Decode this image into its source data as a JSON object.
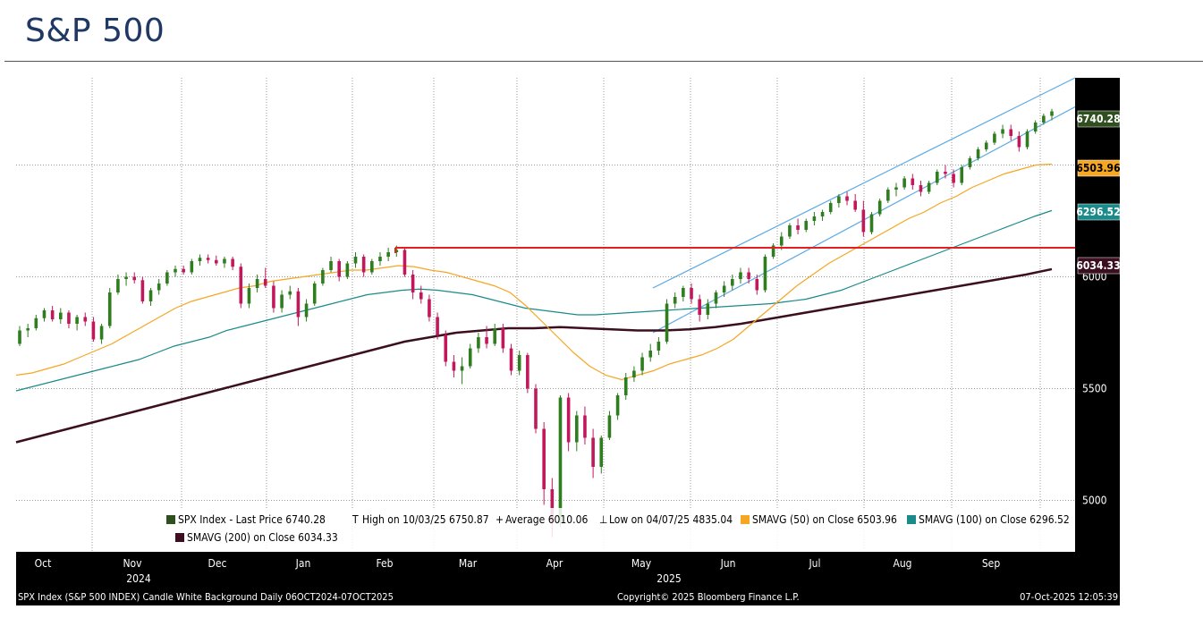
{
  "title": "S&P 500",
  "chart_data": {
    "type": "candlestick",
    "y_range": [
      4770,
      6890
    ],
    "y_ticks": [
      "5000",
      "5500",
      "6000"
    ],
    "x_ticks": [
      "Oct",
      "Nov",
      "Dec",
      "Jan",
      "Feb",
      "Mar",
      "Apr",
      "May",
      "Jun",
      "Jul",
      "Aug",
      "Sep"
    ],
    "year_labels": [
      "2024",
      "2025"
    ],
    "grid": true,
    "price_tags": [
      {
        "label": "6740.28",
        "value": 6740.28,
        "bg": "#2f4f1f",
        "fg": "#ffffff"
      },
      {
        "label": "6503.96",
        "value": 6503.96,
        "bg": "#f5a623",
        "fg": "#000000"
      },
      {
        "label": "6296.52",
        "value": 6296.52,
        "bg": "#1a8a8a",
        "fg": "#ffffff"
      },
      {
        "label": "6034.33",
        "value": 6034.33,
        "bg": "#3b0f1f",
        "fg": "#ffffff"
      }
    ],
    "candles": [
      {
        "o": 5700,
        "h": 5780,
        "l": 5690,
        "c": 5760
      },
      {
        "o": 5760,
        "h": 5790,
        "l": 5730,
        "c": 5770
      },
      {
        "o": 5770,
        "h": 5830,
        "l": 5760,
        "c": 5815
      },
      {
        "o": 5815,
        "h": 5860,
        "l": 5800,
        "c": 5850
      },
      {
        "o": 5850,
        "h": 5870,
        "l": 5800,
        "c": 5810
      },
      {
        "o": 5810,
        "h": 5860,
        "l": 5790,
        "c": 5840
      },
      {
        "o": 5840,
        "h": 5850,
        "l": 5770,
        "c": 5790
      },
      {
        "o": 5790,
        "h": 5830,
        "l": 5760,
        "c": 5820
      },
      {
        "o": 5820,
        "h": 5840,
        "l": 5780,
        "c": 5800
      },
      {
        "o": 5800,
        "h": 5820,
        "l": 5710,
        "c": 5720
      },
      {
        "o": 5720,
        "h": 5790,
        "l": 5700,
        "c": 5780
      },
      {
        "o": 5780,
        "h": 5950,
        "l": 5770,
        "c": 5930
      },
      {
        "o": 5930,
        "h": 6010,
        "l": 5920,
        "c": 5990
      },
      {
        "o": 5990,
        "h": 6020,
        "l": 5960,
        "c": 6000
      },
      {
        "o": 6000,
        "h": 6020,
        "l": 5970,
        "c": 5985
      },
      {
        "o": 5985,
        "h": 6000,
        "l": 5880,
        "c": 5890
      },
      {
        "o": 5890,
        "h": 5950,
        "l": 5870,
        "c": 5940
      },
      {
        "o": 5940,
        "h": 5990,
        "l": 5920,
        "c": 5970
      },
      {
        "o": 5970,
        "h": 6030,
        "l": 5960,
        "c": 6020
      },
      {
        "o": 6020,
        "h": 6050,
        "l": 6000,
        "c": 6035
      },
      {
        "o": 6035,
        "h": 6050,
        "l": 6010,
        "c": 6020
      },
      {
        "o": 6020,
        "h": 6080,
        "l": 6010,
        "c": 6070
      },
      {
        "o": 6070,
        "h": 6100,
        "l": 6050,
        "c": 6085
      },
      {
        "o": 6085,
        "h": 6100,
        "l": 6060,
        "c": 6075
      },
      {
        "o": 6075,
        "h": 6095,
        "l": 6050,
        "c": 6060
      },
      {
        "o": 6060,
        "h": 6090,
        "l": 6040,
        "c": 6080
      },
      {
        "o": 6080,
        "h": 6090,
        "l": 6030,
        "c": 6045
      },
      {
        "o": 6045,
        "h": 6060,
        "l": 5860,
        "c": 5880
      },
      {
        "o": 5880,
        "h": 5970,
        "l": 5860,
        "c": 5950
      },
      {
        "o": 5950,
        "h": 6010,
        "l": 5930,
        "c": 5990
      },
      {
        "o": 5990,
        "h": 6040,
        "l": 5950,
        "c": 5960
      },
      {
        "o": 5960,
        "h": 5980,
        "l": 5840,
        "c": 5860
      },
      {
        "o": 5860,
        "h": 5940,
        "l": 5840,
        "c": 5920
      },
      {
        "o": 5920,
        "h": 5960,
        "l": 5900,
        "c": 5935
      },
      {
        "o": 5935,
        "h": 5950,
        "l": 5780,
        "c": 5820
      },
      {
        "o": 5820,
        "h": 5900,
        "l": 5800,
        "c": 5880
      },
      {
        "o": 5880,
        "h": 5980,
        "l": 5870,
        "c": 5970
      },
      {
        "o": 5970,
        "h": 6040,
        "l": 5960,
        "c": 6030
      },
      {
        "o": 6030,
        "h": 6090,
        "l": 6020,
        "c": 6070
      },
      {
        "o": 6070,
        "h": 6080,
        "l": 5980,
        "c": 6000
      },
      {
        "o": 6000,
        "h": 6070,
        "l": 5990,
        "c": 6060
      },
      {
        "o": 6060,
        "h": 6110,
        "l": 6040,
        "c": 6090
      },
      {
        "o": 6090,
        "h": 6100,
        "l": 6000,
        "c": 6020
      },
      {
        "o": 6020,
        "h": 6080,
        "l": 6010,
        "c": 6070
      },
      {
        "o": 6070,
        "h": 6110,
        "l": 6050,
        "c": 6090
      },
      {
        "o": 6090,
        "h": 6130,
        "l": 6070,
        "c": 6110
      },
      {
        "o": 6110,
        "h": 6140,
        "l": 6090,
        "c": 6120
      },
      {
        "o": 6120,
        "h": 6130,
        "l": 6000,
        "c": 6010
      },
      {
        "o": 6010,
        "h": 6030,
        "l": 5900,
        "c": 5930
      },
      {
        "o": 5930,
        "h": 5960,
        "l": 5880,
        "c": 5900
      },
      {
        "o": 5900,
        "h": 5920,
        "l": 5800,
        "c": 5820
      },
      {
        "o": 5820,
        "h": 5840,
        "l": 5720,
        "c": 5740
      },
      {
        "o": 5740,
        "h": 5760,
        "l": 5600,
        "c": 5620
      },
      {
        "o": 5620,
        "h": 5650,
        "l": 5550,
        "c": 5580
      },
      {
        "o": 5580,
        "h": 5640,
        "l": 5520,
        "c": 5600
      },
      {
        "o": 5600,
        "h": 5700,
        "l": 5590,
        "c": 5680
      },
      {
        "o": 5680,
        "h": 5750,
        "l": 5660,
        "c": 5730
      },
      {
        "o": 5730,
        "h": 5780,
        "l": 5680,
        "c": 5700
      },
      {
        "o": 5700,
        "h": 5790,
        "l": 5690,
        "c": 5770
      },
      {
        "o": 5770,
        "h": 5790,
        "l": 5660,
        "c": 5680
      },
      {
        "o": 5680,
        "h": 5700,
        "l": 5560,
        "c": 5580
      },
      {
        "o": 5580,
        "h": 5670,
        "l": 5560,
        "c": 5650
      },
      {
        "o": 5650,
        "h": 5660,
        "l": 5480,
        "c": 5500
      },
      {
        "o": 5500,
        "h": 5520,
        "l": 5300,
        "c": 5320
      },
      {
        "o": 5320,
        "h": 5350,
        "l": 4980,
        "c": 5050
      },
      {
        "o": 5050,
        "h": 5100,
        "l": 4835,
        "c": 4900
      },
      {
        "o": 4900,
        "h": 5470,
        "l": 4880,
        "c": 5460
      },
      {
        "o": 5460,
        "h": 5480,
        "l": 5220,
        "c": 5260
      },
      {
        "o": 5260,
        "h": 5400,
        "l": 5220,
        "c": 5380
      },
      {
        "o": 5380,
        "h": 5420,
        "l": 5250,
        "c": 5280
      },
      {
        "o": 5280,
        "h": 5320,
        "l": 5100,
        "c": 5150
      },
      {
        "o": 5150,
        "h": 5290,
        "l": 5120,
        "c": 5280
      },
      {
        "o": 5280,
        "h": 5400,
        "l": 5270,
        "c": 5380
      },
      {
        "o": 5380,
        "h": 5480,
        "l": 5360,
        "c": 5470
      },
      {
        "o": 5470,
        "h": 5570,
        "l": 5450,
        "c": 5550
      },
      {
        "o": 5550,
        "h": 5600,
        "l": 5530,
        "c": 5580
      },
      {
        "o": 5580,
        "h": 5660,
        "l": 5560,
        "c": 5640
      },
      {
        "o": 5640,
        "h": 5700,
        "l": 5620,
        "c": 5670
      },
      {
        "o": 5670,
        "h": 5730,
        "l": 5650,
        "c": 5710
      },
      {
        "o": 5710,
        "h": 5900,
        "l": 5700,
        "c": 5880
      },
      {
        "o": 5880,
        "h": 5930,
        "l": 5860,
        "c": 5910
      },
      {
        "o": 5910,
        "h": 5960,
        "l": 5890,
        "c": 5950
      },
      {
        "o": 5950,
        "h": 5970,
        "l": 5880,
        "c": 5900
      },
      {
        "o": 5900,
        "h": 5920,
        "l": 5800,
        "c": 5830
      },
      {
        "o": 5830,
        "h": 5900,
        "l": 5810,
        "c": 5880
      },
      {
        "o": 5880,
        "h": 5940,
        "l": 5860,
        "c": 5930
      },
      {
        "o": 5930,
        "h": 5980,
        "l": 5910,
        "c": 5960
      },
      {
        "o": 5960,
        "h": 6010,
        "l": 5940,
        "c": 5990
      },
      {
        "o": 5990,
        "h": 6040,
        "l": 5970,
        "c": 6020
      },
      {
        "o": 6020,
        "h": 6040,
        "l": 5970,
        "c": 5990
      },
      {
        "o": 5990,
        "h": 6010,
        "l": 5920,
        "c": 5940
      },
      {
        "o": 5940,
        "h": 6100,
        "l": 5930,
        "c": 6090
      },
      {
        "o": 6090,
        "h": 6150,
        "l": 6080,
        "c": 6140
      },
      {
        "o": 6140,
        "h": 6200,
        "l": 6120,
        "c": 6180
      },
      {
        "o": 6180,
        "h": 6240,
        "l": 6170,
        "c": 6230
      },
      {
        "o": 6230,
        "h": 6260,
        "l": 6190,
        "c": 6210
      },
      {
        "o": 6210,
        "h": 6260,
        "l": 6200,
        "c": 6250
      },
      {
        "o": 6250,
        "h": 6290,
        "l": 6230,
        "c": 6270
      },
      {
        "o": 6270,
        "h": 6300,
        "l": 6250,
        "c": 6290
      },
      {
        "o": 6290,
        "h": 6340,
        "l": 6280,
        "c": 6330
      },
      {
        "o": 6330,
        "h": 6370,
        "l": 6310,
        "c": 6360
      },
      {
        "o": 6360,
        "h": 6380,
        "l": 6320,
        "c": 6340
      },
      {
        "o": 6340,
        "h": 6370,
        "l": 6290,
        "c": 6300
      },
      {
        "o": 6300,
        "h": 6340,
        "l": 6180,
        "c": 6200
      },
      {
        "o": 6200,
        "h": 6290,
        "l": 6190,
        "c": 6280
      },
      {
        "o": 6280,
        "h": 6350,
        "l": 6270,
        "c": 6340
      },
      {
        "o": 6340,
        "h": 6400,
        "l": 6330,
        "c": 6390
      },
      {
        "o": 6390,
        "h": 6420,
        "l": 6360,
        "c": 6400
      },
      {
        "o": 6400,
        "h": 6450,
        "l": 6390,
        "c": 6440
      },
      {
        "o": 6440,
        "h": 6460,
        "l": 6390,
        "c": 6410
      },
      {
        "o": 6410,
        "h": 6430,
        "l": 6360,
        "c": 6380
      },
      {
        "o": 6380,
        "h": 6430,
        "l": 6370,
        "c": 6420
      },
      {
        "o": 6420,
        "h": 6480,
        "l": 6410,
        "c": 6470
      },
      {
        "o": 6470,
        "h": 6500,
        "l": 6440,
        "c": 6460
      },
      {
        "o": 6460,
        "h": 6480,
        "l": 6400,
        "c": 6420
      },
      {
        "o": 6420,
        "h": 6500,
        "l": 6410,
        "c": 6490
      },
      {
        "o": 6490,
        "h": 6540,
        "l": 6480,
        "c": 6530
      },
      {
        "o": 6530,
        "h": 6580,
        "l": 6520,
        "c": 6570
      },
      {
        "o": 6570,
        "h": 6610,
        "l": 6560,
        "c": 6600
      },
      {
        "o": 6600,
        "h": 6650,
        "l": 6590,
        "c": 6640
      },
      {
        "o": 6640,
        "h": 6680,
        "l": 6620,
        "c": 6660
      },
      {
        "o": 6660,
        "h": 6680,
        "l": 6610,
        "c": 6630
      },
      {
        "o": 6630,
        "h": 6650,
        "l": 6560,
        "c": 6580
      },
      {
        "o": 6580,
        "h": 6660,
        "l": 6570,
        "c": 6650
      },
      {
        "o": 6650,
        "h": 6700,
        "l": 6640,
        "c": 6690
      },
      {
        "o": 6690,
        "h": 6730,
        "l": 6680,
        "c": 6720
      },
      {
        "o": 6720,
        "h": 6751,
        "l": 6700,
        "c": 6740
      }
    ],
    "sma50": [
      5560,
      5570,
      5590,
      5610,
      5640,
      5670,
      5700,
      5740,
      5780,
      5820,
      5860,
      5890,
      5910,
      5930,
      5950,
      5960,
      5980,
      5990,
      6000,
      6010,
      6020,
      6030,
      6030,
      6040,
      6050,
      6045,
      6030,
      6020,
      6000,
      5980,
      5960,
      5930,
      5870,
      5800,
      5730,
      5660,
      5600,
      5560,
      5540,
      5560,
      5580,
      5610,
      5630,
      5650,
      5680,
      5720,
      5780,
      5840,
      5900,
      5960,
      6010,
      6060,
      6100,
      6140,
      6180,
      6220,
      6260,
      6290,
      6330,
      6360,
      6400,
      6430,
      6460,
      6480,
      6500,
      6503.96
    ],
    "sma100": [
      5490,
      5510,
      5530,
      5550,
      5570,
      5590,
      5610,
      5630,
      5660,
      5690,
      5710,
      5730,
      5760,
      5780,
      5800,
      5820,
      5840,
      5860,
      5880,
      5900,
      5920,
      5930,
      5940,
      5945,
      5940,
      5930,
      5920,
      5900,
      5880,
      5860,
      5850,
      5840,
      5830,
      5830,
      5835,
      5840,
      5845,
      5850,
      5855,
      5860,
      5865,
      5870,
      5875,
      5880,
      5890,
      5900,
      5920,
      5940,
      5970,
      6000,
      6030,
      6060,
      6090,
      6120,
      6150,
      6180,
      6210,
      6240,
      6270,
      6296.52
    ],
    "sma200": [
      5260,
      5290,
      5320,
      5350,
      5380,
      5410,
      5440,
      5470,
      5500,
      5530,
      5560,
      5590,
      5620,
      5650,
      5680,
      5710,
      5730,
      5750,
      5760,
      5770,
      5770,
      5775,
      5770,
      5765,
      5760,
      5760,
      5765,
      5775,
      5790,
      5810,
      5830,
      5850,
      5870,
      5890,
      5910,
      5930,
      5950,
      5970,
      5990,
      6010,
      6034.33
    ],
    "resistance_level": 6130,
    "channel": {
      "upper": [
        [
          5950,
          6890
        ]
      ],
      "lower": [
        [
          5750,
          6760
        ]
      ]
    },
    "legend": {
      "row1": [
        {
          "marker": "candle",
          "color": "#2f4f1f",
          "text": "SPX Index - Last Price 6740.28"
        },
        {
          "marker": "T",
          "color": "#000000",
          "text": "High on 10/03/25 6750.87"
        },
        {
          "marker": "+",
          "color": "#000000",
          "text": "Average 6010.06"
        },
        {
          "marker": "⊥",
          "color": "#000000",
          "text": "Low on 04/07/25 4835.04"
        },
        {
          "marker": "square",
          "color": "#f5a623",
          "text": "SMAVG (50)  on Close 6503.96"
        },
        {
          "marker": "square",
          "color": "#1a8a8a",
          "text": "SMAVG (100)  on Close 6296.52"
        }
      ],
      "row2": [
        {
          "marker": "square",
          "color": "#3b0f1f",
          "text": "SMAVG (200)  on Close 6034.33"
        }
      ]
    },
    "footer": {
      "left": "SPX Index (S&P 500 INDEX) Candle White Background Daily 06OCT2024-07OCT2025",
      "center": "Copyright© 2025 Bloomberg Finance L.P.",
      "right": "07-Oct-2025 12:05:39"
    }
  },
  "colors": {
    "up": "#2e7d1f",
    "down": "#c2185b",
    "sma50": "#f5a623",
    "sma100": "#1a8a8a",
    "sma200": "#3b0f1f",
    "resistance": "#e41f1f",
    "channel": "#5aa9e6"
  }
}
